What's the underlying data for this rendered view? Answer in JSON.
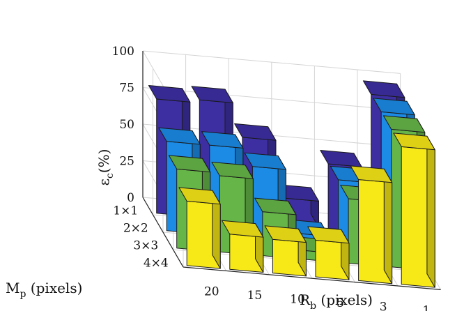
{
  "chart_data": {
    "type": "bar3d",
    "title": "",
    "xlabel_base": "R",
    "xlabel_sub": "b",
    "xlabel_unit": " (pixels)",
    "ylabel_base": "M",
    "ylabel_sub": "p",
    "ylabel_unit": " (pixels)",
    "zlabel_base": "ε",
    "zlabel_sub": "c",
    "zlabel_unit": "(%)",
    "x_categories": [
      "20",
      "15",
      "10",
      "5",
      "3",
      "1"
    ],
    "y_categories": [
      "1×1",
      "2×2",
      "3×3",
      "4×4"
    ],
    "z_ticks": [
      "0",
      "25",
      "50",
      "75",
      "100"
    ],
    "zlim": [
      0,
      100
    ],
    "grid": true,
    "series": [
      {
        "values": [
          78,
          80,
          57,
          18,
          44,
          94
        ],
        "color": "#3d2fa2"
      },
      {
        "values": [
          61,
          61,
          49,
          6,
          45,
          94
        ],
        "color": "#1b8be6"
      },
      {
        "values": [
          54,
          52,
          30,
          6,
          44,
          94
        ],
        "color": "#66b548"
      },
      {
        "values": [
          44,
          24,
          23,
          25,
          69,
          94
        ],
        "color": "#f7e817"
      }
    ]
  }
}
